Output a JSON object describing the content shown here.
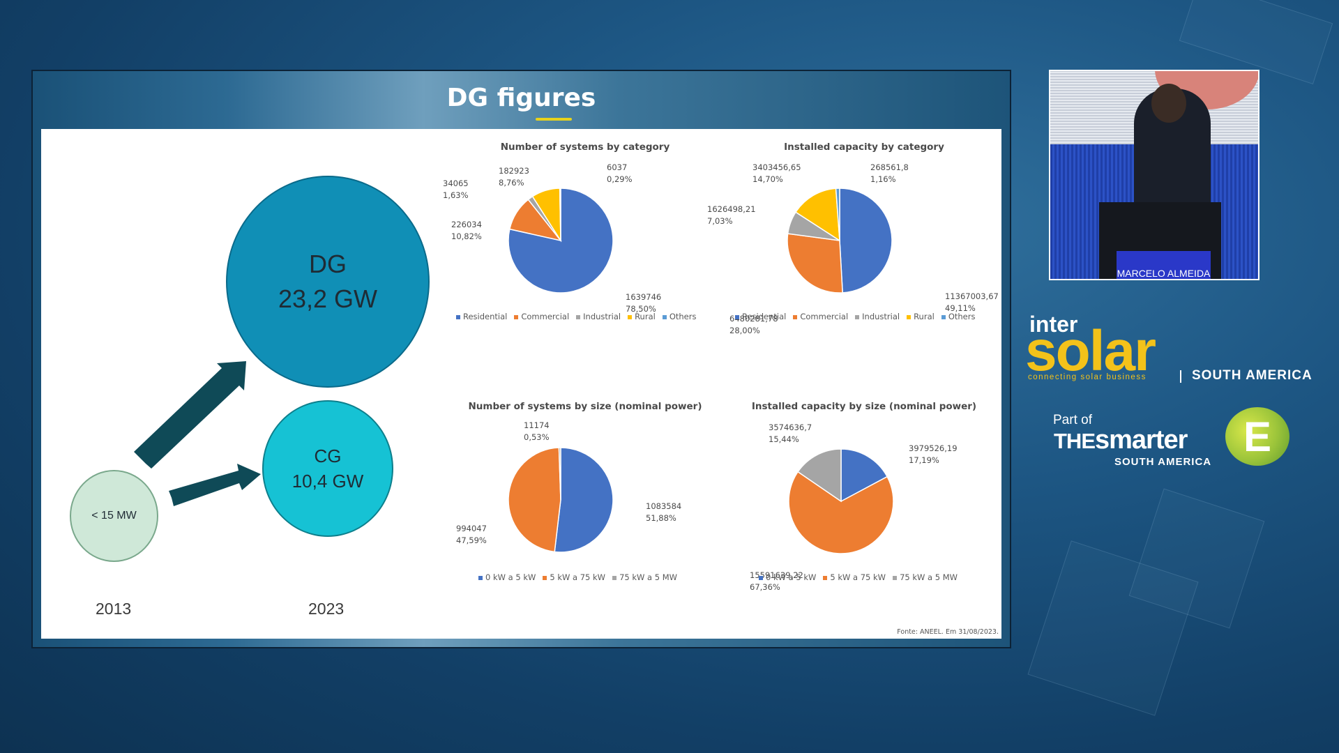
{
  "slide": {
    "title": "DG figures",
    "dg_label": "DG",
    "dg_value": "23,2 GW",
    "cg_label": "CG",
    "cg_value": "10,4 GW",
    "small_label": "< 15 MW",
    "year_left": "2013",
    "year_right": "2023",
    "source": "Fonte: ANEEL. Em 31/08/2023."
  },
  "colors": {
    "blue": "#4472c4",
    "orange": "#ed7d31",
    "gray": "#a5a5a5",
    "yellow": "#ffc000",
    "lightblue": "#5b9bd5",
    "brand_yellow": "#f3c21a"
  },
  "chart_data": [
    {
      "type": "pie",
      "title": "Number of systems by category",
      "legend": [
        "Residential",
        "Commercial",
        "Industrial",
        "Rural",
        "Others"
      ],
      "values": [
        1639746,
        226034,
        34065,
        182923,
        6037
      ],
      "percent_labels": [
        "78,50%",
        "10,82%",
        "1,63%",
        "8,76%",
        "0,29%"
      ],
      "value_labels": [
        "1639746",
        "226034",
        "34065",
        "182923",
        "6037"
      ]
    },
    {
      "type": "pie",
      "title": "Installed capacity by category",
      "legend": [
        "Residential",
        "Commercial",
        "Industrial",
        "Rural",
        "Others"
      ],
      "values": [
        11367003.67,
        6480281.78,
        1626498.21,
        3403456.65,
        268561.8
      ],
      "percent_labels": [
        "49,11%",
        "28,00%",
        "7,03%",
        "14,70%",
        "1,16%"
      ],
      "value_labels": [
        "11367003,67",
        "6480281,78",
        "1626498,21",
        "3403456,65",
        "268561,8"
      ]
    },
    {
      "type": "pie",
      "title": "Number of systems by size (nominal power)",
      "legend": [
        "0 kW a 5 kW",
        "5 kW a 75 kW",
        "75 kW a 5 MW"
      ],
      "values": [
        1083584,
        994047,
        11174
      ],
      "percent_labels": [
        "51,88%",
        "47,59%",
        "0,53%"
      ],
      "value_labels": [
        "1083584",
        "994047",
        "11174"
      ]
    },
    {
      "type": "pie",
      "title": "Installed capacity by size (nominal power)",
      "legend": [
        "0 kW a 5 kW",
        "5 kW a 75 kW",
        "75 kW a 5 MW"
      ],
      "values": [
        3979526.19,
        15591639.22,
        3574636.7
      ],
      "percent_labels": [
        "17,19%",
        "67,36%",
        "15,44%"
      ],
      "value_labels": [
        "3979526,19",
        "15591639,22",
        "3574636,7"
      ]
    }
  ],
  "camera": {
    "name_tag": "MARCELO ALMEIDA"
  },
  "branding": {
    "inter": "inter",
    "solar": "solar",
    "tagline": "connecting solar business",
    "region": "SOUTH AMERICA",
    "part_of": "Part of",
    "the": "THE",
    "smarter": "smarter",
    "e_logo": "E",
    "region2": "SOUTH AMERICA"
  }
}
